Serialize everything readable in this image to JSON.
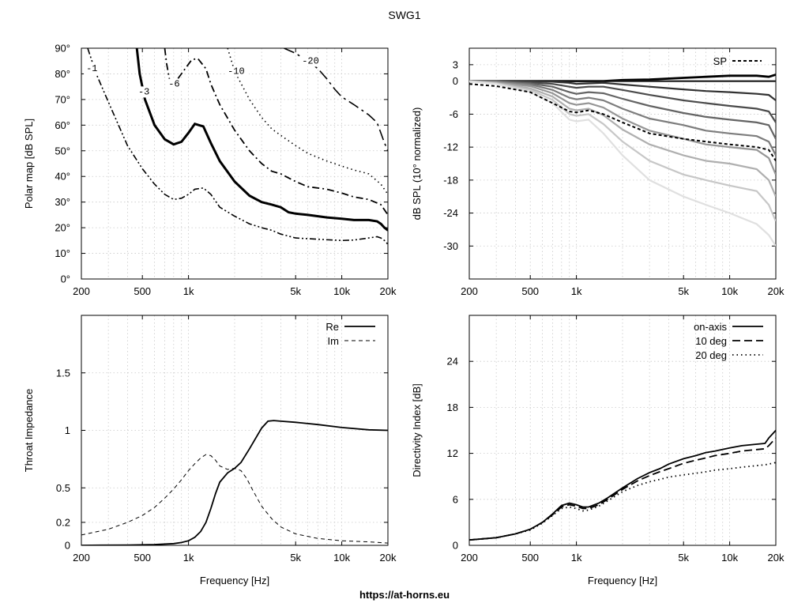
{
  "title": "SWG1",
  "footer": "https://at-horns.eu",
  "chart_data": [
    {
      "id": "polar",
      "type": "line",
      "xscale": "log",
      "xlim": [
        200,
        20000
      ],
      "ylim": [
        0,
        90
      ],
      "xticks": [
        200,
        500,
        1000,
        5000,
        10000,
        20000
      ],
      "xtick_labels": [
        "200",
        "500",
        "1k",
        "5k",
        "10k",
        "20k"
      ],
      "yticks": [
        0,
        10,
        20,
        30,
        40,
        50,
        60,
        70,
        80,
        90
      ],
      "ytick_labels": [
        "0°",
        "10°",
        "20°",
        "30°",
        "40°",
        "50°",
        "60°",
        "70°",
        "80°",
        "90°"
      ],
      "ylabel": "Polar map [dB SPL]",
      "xlabel": "",
      "grid": true,
      "contours": [
        {
          "label": "-1",
          "label_at": [
            215,
            81
          ],
          "style": "dash-dot-dot",
          "width": 1.6,
          "x": [
            220,
            250,
            300,
            400,
            500,
            600,
            700,
            800,
            900,
            1000,
            1100,
            1250,
            1400,
            1600,
            2000,
            2500,
            3000,
            3500,
            4000,
            5000,
            7000,
            10000,
            12000,
            15000,
            17000,
            18000,
            19000,
            20000
          ],
          "y": [
            90,
            80,
            69,
            52,
            43,
            37,
            33,
            31,
            31.5,
            33,
            35,
            35.5,
            33,
            28,
            24.5,
            21.5,
            20,
            19,
            17.5,
            16,
            15.5,
            15,
            15.2,
            16,
            16.5,
            16,
            15,
            13.5
          ]
        },
        {
          "label": "-3",
          "label_at": [
            470,
            72
          ],
          "style": "solid",
          "width": 3,
          "x": [
            460,
            480,
            520,
            600,
            700,
            800,
            900,
            1000,
            1100,
            1250,
            1400,
            1600,
            2000,
            2500,
            3000,
            3500,
            4000,
            4500,
            5000,
            6000,
            8000,
            10000,
            12000,
            15000,
            17000,
            18000,
            19000,
            20000
          ],
          "y": [
            90,
            80,
            70,
            60,
            54.5,
            52.5,
            53.5,
            57,
            60.5,
            59.5,
            53,
            46,
            38,
            32.5,
            30,
            29,
            28,
            26,
            25.5,
            25,
            24,
            23.5,
            23,
            23,
            22.5,
            21.5,
            20,
            19
          ]
        },
        {
          "label": "-6",
          "label_at": [
            740,
            75
          ],
          "style": "dash-dot",
          "width": 1.8,
          "x": [
            700,
            720,
            750,
            780,
            850,
            950,
            1050,
            1150,
            1300,
            1400,
            1600,
            2000,
            2500,
            3000,
            3500,
            4000,
            5000,
            6000,
            8000,
            10000,
            12000,
            15000,
            18000,
            20000
          ],
          "y": [
            90,
            84,
            78,
            76,
            78,
            82,
            85.5,
            86,
            82,
            76,
            68,
            58,
            50,
            45,
            42,
            41,
            38,
            36,
            35,
            33.5,
            32,
            31,
            29,
            25
          ]
        },
        {
          "label": "-10",
          "label_at": [
            1800,
            80
          ],
          "style": "dotted",
          "width": 1.6,
          "x": [
            1800,
            2000,
            2500,
            3000,
            3500,
            4000,
            5000,
            6000,
            8000,
            10000,
            12000,
            15000,
            18000,
            20000
          ],
          "y": [
            90,
            81,
            70,
            63,
            58.5,
            56,
            52,
            49,
            46,
            44,
            42.5,
            41,
            37,
            33
          ]
        },
        {
          "label": "-20",
          "label_at": [
            5500,
            84
          ],
          "style": "long-dash-dot",
          "width": 1.6,
          "x": [
            4200,
            5000,
            6000,
            7000,
            8000,
            9000,
            10000,
            12000,
            15000,
            17000,
            19000,
            20000
          ],
          "y": [
            90,
            88,
            85,
            82,
            78,
            74,
            71,
            68,
            64,
            61,
            53,
            50
          ]
        }
      ]
    },
    {
      "id": "normalized",
      "type": "line",
      "xscale": "log",
      "xlim": [
        200,
        20000
      ],
      "ylim": [
        -36,
        6
      ],
      "xticks": [
        200,
        500,
        1000,
        5000,
        10000,
        20000
      ],
      "xtick_labels": [
        "200",
        "500",
        "1k",
        "5k",
        "10k",
        "20k"
      ],
      "yticks": [
        3,
        0,
        -6,
        -12,
        -18,
        -24,
        -30
      ],
      "ytick_labels": [
        "3",
        "0",
        "-6",
        "-12",
        "-18",
        "-24",
        "-30"
      ],
      "ylabel": "dB SPL (10° normalized)",
      "xlabel": "",
      "grid": true,
      "legend": {
        "position": "top-right",
        "entries": [
          "SP"
        ]
      },
      "x": [
        200,
        300,
        500,
        700,
        900,
        1000,
        1200,
        1500,
        2000,
        3000,
        5000,
        7000,
        10000,
        15000,
        18000,
        20000
      ],
      "angles_deg": [
        0,
        10,
        20,
        30,
        40,
        50,
        60,
        70,
        80,
        90
      ],
      "series": [
        {
          "angle": 0,
          "values": [
            0,
            0,
            0,
            0,
            0,
            0,
            0,
            0,
            0.2,
            0.3,
            0.6,
            0.8,
            1.0,
            1.0,
            0.8,
            1.2
          ]
        },
        {
          "angle": 10,
          "values": [
            0,
            0,
            0,
            0,
            0,
            0,
            0,
            0,
            0,
            0,
            0,
            0,
            0,
            0,
            0,
            0
          ]
        },
        {
          "angle": 20,
          "values": [
            0,
            0,
            0,
            -0.1,
            -0.3,
            -0.5,
            -0.4,
            -0.3,
            -0.6,
            -1.0,
            -1.5,
            -1.8,
            -2.0,
            -2.3,
            -2.5,
            -3.5
          ]
        },
        {
          "angle": 30,
          "values": [
            0,
            0,
            -0.2,
            -0.5,
            -1.0,
            -1.2,
            -1.0,
            -1.0,
            -1.6,
            -2.5,
            -3.5,
            -4.0,
            -4.5,
            -5.0,
            -5.5,
            -7.5
          ]
        },
        {
          "angle": 40,
          "values": [
            0,
            0,
            -0.4,
            -1.0,
            -2.0,
            -2.3,
            -2.0,
            -2.2,
            -3.2,
            -4.5,
            -5.8,
            -6.5,
            -7.0,
            -7.5,
            -8.0,
            -10.5
          ]
        },
        {
          "angle": 50,
          "values": [
            0,
            -0.1,
            -0.6,
            -1.6,
            -3.0,
            -3.3,
            -3.0,
            -3.5,
            -5.0,
            -6.8,
            -8.0,
            -9.0,
            -9.5,
            -10.0,
            -11.0,
            -13.5
          ]
        },
        {
          "angle": 60,
          "values": [
            0,
            -0.2,
            -0.9,
            -2.2,
            -4.0,
            -4.3,
            -4.0,
            -4.8,
            -6.8,
            -9.0,
            -10.5,
            -11.5,
            -12.0,
            -12.5,
            -14.0,
            -17.0
          ]
        },
        {
          "angle": 70,
          "values": [
            0,
            -0.3,
            -1.3,
            -2.8,
            -5.0,
            -5.3,
            -5.0,
            -6.2,
            -8.8,
            -11.5,
            -13.5,
            -14.5,
            -15.0,
            -16.0,
            -18.0,
            -21.0
          ]
        },
        {
          "angle": 80,
          "values": [
            0,
            -0.4,
            -1.6,
            -3.4,
            -6.0,
            -6.3,
            -6.0,
            -7.8,
            -11.0,
            -14.5,
            -17.0,
            -18.0,
            -19.0,
            -20.0,
            -22.5,
            -25.5
          ]
        },
        {
          "angle": 90,
          "values": [
            0,
            -0.5,
            -2.0,
            -4.0,
            -7.0,
            -7.3,
            -7.0,
            -9.5,
            -13.5,
            -18.0,
            -21.0,
            -22.5,
            -24.0,
            -26.0,
            -28.0,
            -30.0
          ]
        },
        {
          "name": "SP",
          "style": "dashed",
          "values": [
            -0.5,
            -0.9,
            -2.0,
            -4.0,
            -5.5,
            -5.7,
            -5.3,
            -6.0,
            -7.5,
            -9.5,
            -10.5,
            -11.0,
            -11.5,
            -12.0,
            -12.5,
            -14.5
          ]
        }
      ]
    },
    {
      "id": "impedance",
      "type": "line",
      "xscale": "log",
      "xlim": [
        200,
        20000
      ],
      "ylim": [
        0,
        2
      ],
      "xticks": [
        200,
        500,
        1000,
        5000,
        10000,
        20000
      ],
      "xtick_labels": [
        "200",
        "500",
        "1k",
        "5k",
        "10k",
        "20k"
      ],
      "yticks": [
        0,
        0.2,
        0.5,
        1,
        1.5
      ],
      "ytick_labels": [
        "0",
        "0.2",
        "0.5",
        "1",
        "1.5"
      ],
      "ylabel": "Throat Impedance",
      "xlabel": "Frequency [Hz]",
      "grid": true,
      "legend": {
        "position": "top-right",
        "entries": [
          "Re",
          "Im"
        ]
      },
      "series": [
        {
          "name": "Re",
          "style": "solid",
          "x": [
            200,
            400,
            600,
            800,
            900,
            1000,
            1100,
            1200,
            1300,
            1400,
            1500,
            1600,
            1800,
            2000,
            2200,
            2500,
            3000,
            3300,
            3600,
            4000,
            5000,
            7000,
            10000,
            15000,
            20000
          ],
          "y": [
            0,
            0.003,
            0.007,
            0.015,
            0.025,
            0.04,
            0.07,
            0.12,
            0.2,
            0.32,
            0.45,
            0.55,
            0.63,
            0.67,
            0.72,
            0.84,
            1.02,
            1.08,
            1.085,
            1.08,
            1.07,
            1.05,
            1.025,
            1.005,
            1.0
          ]
        },
        {
          "name": "Im",
          "style": "dashed",
          "x": [
            200,
            300,
            400,
            500,
            600,
            700,
            800,
            900,
            1000,
            1100,
            1200,
            1300,
            1400,
            1500,
            1600,
            1800,
            2000,
            2200,
            2400,
            2600,
            3000,
            3500,
            4000,
            5000,
            7000,
            10000,
            15000,
            20000
          ],
          "y": [
            0.09,
            0.14,
            0.2,
            0.26,
            0.33,
            0.41,
            0.49,
            0.57,
            0.65,
            0.71,
            0.76,
            0.79,
            0.78,
            0.74,
            0.69,
            0.66,
            0.67,
            0.65,
            0.58,
            0.49,
            0.34,
            0.23,
            0.16,
            0.1,
            0.06,
            0.04,
            0.03,
            0.02
          ]
        }
      ]
    },
    {
      "id": "directivity",
      "type": "line",
      "xscale": "log",
      "xlim": [
        200,
        20000
      ],
      "ylim": [
        0,
        30
      ],
      "xticks": [
        200,
        500,
        1000,
        5000,
        10000,
        20000
      ],
      "xtick_labels": [
        "200",
        "500",
        "1k",
        "5k",
        "10k",
        "20k"
      ],
      "yticks": [
        0,
        6,
        12,
        18,
        24
      ],
      "ytick_labels": [
        "0",
        "6",
        "12",
        "18",
        "24"
      ],
      "ylabel": "Directivity Index [dB]",
      "xlabel": "Frequency [Hz]",
      "grid": true,
      "legend": {
        "position": "top-right",
        "entries": [
          "on-axis",
          "10 deg",
          "20 deg"
        ]
      },
      "series": [
        {
          "name": "on-axis",
          "style": "solid",
          "x": [
            200,
            300,
            400,
            500,
            600,
            700,
            800,
            900,
            1000,
            1100,
            1200,
            1400,
            1600,
            2000,
            2500,
            3000,
            3500,
            4000,
            5000,
            6000,
            7000,
            8000,
            10000,
            12000,
            15000,
            17000,
            18000,
            20000
          ],
          "y": [
            0.7,
            1.0,
            1.5,
            2.1,
            3.0,
            4.1,
            5.2,
            5.5,
            5.3,
            5.0,
            5.0,
            5.5,
            6.2,
            7.5,
            8.7,
            9.5,
            10.0,
            10.6,
            11.3,
            11.7,
            12.1,
            12.3,
            12.7,
            13.0,
            13.2,
            13.3,
            14.0,
            15.0
          ]
        },
        {
          "name": "10 deg",
          "style": "dashed",
          "x": [
            200,
            300,
            400,
            500,
            600,
            700,
            800,
            900,
            1000,
            1100,
            1200,
            1400,
            1600,
            2000,
            2500,
            3000,
            3500,
            4000,
            5000,
            6000,
            7000,
            8000,
            10000,
            12000,
            15000,
            17000,
            18000,
            20000
          ],
          "y": [
            0.7,
            1.0,
            1.5,
            2.1,
            3.0,
            4.0,
            5.0,
            5.3,
            5.1,
            4.8,
            4.8,
            5.3,
            6.0,
            7.3,
            8.4,
            9.1,
            9.6,
            10.0,
            10.7,
            11.1,
            11.4,
            11.7,
            12.0,
            12.3,
            12.5,
            12.6,
            13.0,
            14.0
          ]
        },
        {
          "name": "20 deg",
          "style": "dotted",
          "x": [
            200,
            300,
            400,
            500,
            600,
            700,
            800,
            900,
            1000,
            1100,
            1200,
            1400,
            1600,
            2000,
            2500,
            3000,
            3500,
            4000,
            5000,
            6000,
            7000,
            8000,
            10000,
            12000,
            15000,
            17000,
            18000,
            20000
          ],
          "y": [
            0.7,
            1.0,
            1.5,
            2.0,
            2.9,
            3.9,
            4.8,
            5.0,
            4.8,
            4.5,
            4.6,
            5.1,
            5.8,
            7.0,
            7.8,
            8.3,
            8.6,
            8.9,
            9.2,
            9.4,
            9.6,
            9.8,
            10.0,
            10.2,
            10.4,
            10.5,
            10.6,
            10.8
          ]
        }
      ]
    }
  ]
}
